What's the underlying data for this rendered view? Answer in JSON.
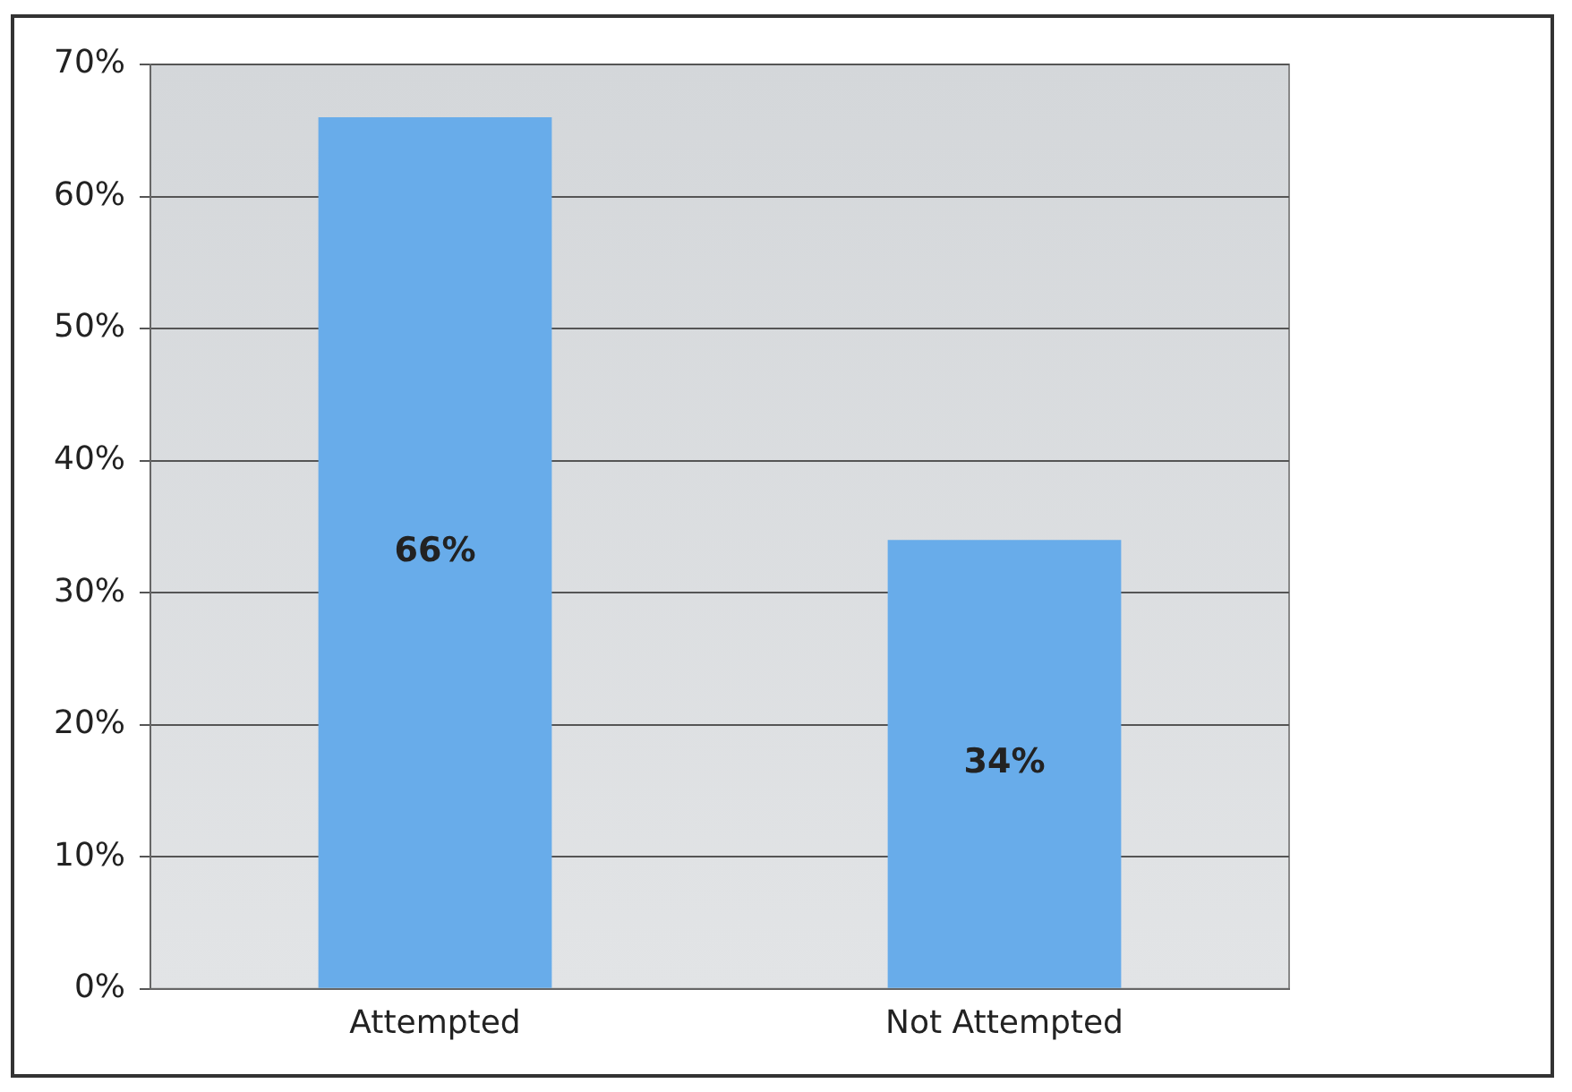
{
  "chart_data": {
    "type": "bar",
    "categories": [
      "Attempted",
      "Not Attempted"
    ],
    "values": [
      66,
      34
    ],
    "value_labels": [
      "66%",
      "34%"
    ],
    "color": "#68acea",
    "ylim": [
      0,
      70
    ],
    "yticks": [
      {
        "value": 0,
        "label": "0%"
      },
      {
        "value": 10,
        "label": "10%"
      },
      {
        "value": 20,
        "label": "20%"
      },
      {
        "value": 30,
        "label": "30%"
      },
      {
        "value": 40,
        "label": "40%"
      },
      {
        "value": 50,
        "label": "50%"
      },
      {
        "value": 60,
        "label": "60%"
      },
      {
        "value": 70,
        "label": "70%"
      }
    ],
    "grid": "y",
    "legend": false
  }
}
